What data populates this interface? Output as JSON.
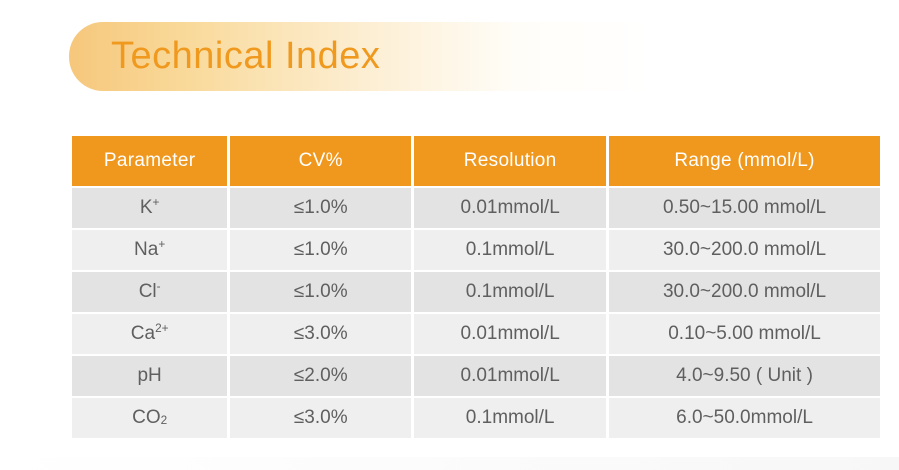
{
  "page": {
    "title": "Technical Index"
  },
  "colors": {
    "accent_orange": "#f0981e",
    "title_text": "#f0991f",
    "pill_gradient_start": "#f6c77c",
    "row_dark": "#e3e3e3",
    "row_light": "#efefef",
    "header_text": "#ffffff",
    "body_text": "#5f5f5f"
  },
  "table": {
    "headers": {
      "parameter": "Parameter",
      "cv": "CV%",
      "resolution": "Resolution",
      "range": "Range (mmol/L)"
    },
    "rows": [
      {
        "param_base": "K",
        "param_sup": "+",
        "param_sub": "",
        "cv": "≤1.0%",
        "resolution": "0.01mmol/L",
        "range": "0.50~15.00 mmol/L"
      },
      {
        "param_base": "Na",
        "param_sup": "+",
        "param_sub": "",
        "cv": "≤1.0%",
        "resolution": "0.1mmol/L",
        "range": "30.0~200.0 mmol/L"
      },
      {
        "param_base": "Cl",
        "param_sup": "-",
        "param_sub": "",
        "cv": "≤1.0%",
        "resolution": "0.1mmol/L",
        "range": "30.0~200.0 mmol/L"
      },
      {
        "param_base": "Ca",
        "param_sup": "2+",
        "param_sub": "",
        "cv": "≤3.0%",
        "resolution": "0.01mmol/L",
        "range": "0.10~5.00 mmol/L"
      },
      {
        "param_base": "pH",
        "param_sup": "",
        "param_sub": "",
        "cv": "≤2.0%",
        "resolution": "0.01mmol/L",
        "range": "4.0~9.50 ( Unit )"
      },
      {
        "param_base": "CO",
        "param_sup": "",
        "param_sub": "2",
        "cv": "≤3.0%",
        "resolution": "0.1mmol/L",
        "range": "6.0~50.0mmol/L"
      }
    ]
  }
}
